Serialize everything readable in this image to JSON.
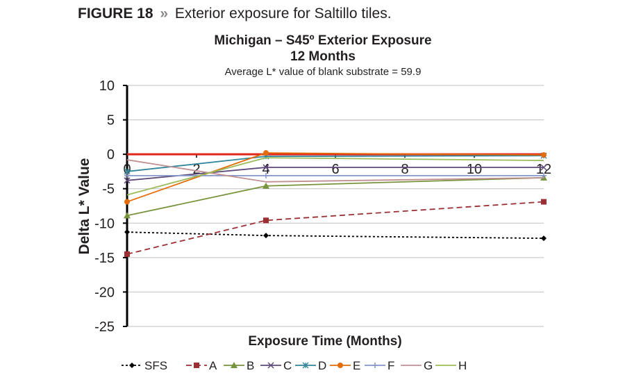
{
  "figure": {
    "number": "FIGURE 18",
    "separator": "»",
    "caption": "Exterior exposure for Saltillo tiles."
  },
  "chart_data": {
    "type": "line",
    "title": "Michigan – S45º Exterior Exposure",
    "subtitle": "12 Months",
    "note": "Average L* value of blank substrate = 59.9",
    "xlabel": "Exposure Time (Months)",
    "ylabel": "Delta L* Value",
    "xlim": [
      0,
      12
    ],
    "ylim": [
      -25,
      10
    ],
    "xticks": [
      0,
      2,
      4,
      6,
      8,
      10,
      12
    ],
    "yticks": [
      10,
      5,
      0,
      -5,
      -10,
      -15,
      -20,
      -25
    ],
    "grid": "horizontal",
    "legend_position": "bottom",
    "reference_line": {
      "y": 0,
      "color": "#e0251b"
    },
    "x": [
      0,
      4,
      12
    ],
    "series": [
      {
        "name": "SFS",
        "values": [
          -11.3,
          -11.8,
          -12.2
        ],
        "color": "#000000",
        "marker": "diamond",
        "dash": "dotted"
      },
      {
        "name": "A",
        "values": [
          -14.5,
          -9.6,
          -6.9
        ],
        "color": "#9b2f33",
        "marker": "square",
        "dash": "dashed"
      },
      {
        "name": "B",
        "values": [
          -8.9,
          -4.6,
          -3.4
        ],
        "color": "#77933c",
        "marker": "triangle",
        "dash": "solid"
      },
      {
        "name": "C",
        "values": [
          -3.8,
          -1.9,
          -1.9
        ],
        "color": "#5f497a",
        "marker": "x",
        "dash": "solid"
      },
      {
        "name": "D",
        "values": [
          -2.5,
          -0.3,
          -0.2
        ],
        "color": "#31859c",
        "marker": "star",
        "dash": "solid"
      },
      {
        "name": "E",
        "values": [
          -6.9,
          0.2,
          -0.1
        ],
        "color": "#e46c0a",
        "marker": "circle",
        "dash": "solid"
      },
      {
        "name": "F",
        "values": [
          -3.1,
          -3.1,
          -3.1
        ],
        "color": "#8497c9",
        "marker": "plus",
        "dash": "solid"
      },
      {
        "name": "G",
        "values": [
          -0.8,
          -4.0,
          -3.4
        ],
        "color": "#c09092",
        "marker": "none",
        "dash": "solid"
      },
      {
        "name": "H",
        "values": [
          -5.9,
          -0.5,
          -0.9
        ],
        "color": "#9bbb59",
        "marker": "none",
        "dash": "solid"
      }
    ]
  }
}
